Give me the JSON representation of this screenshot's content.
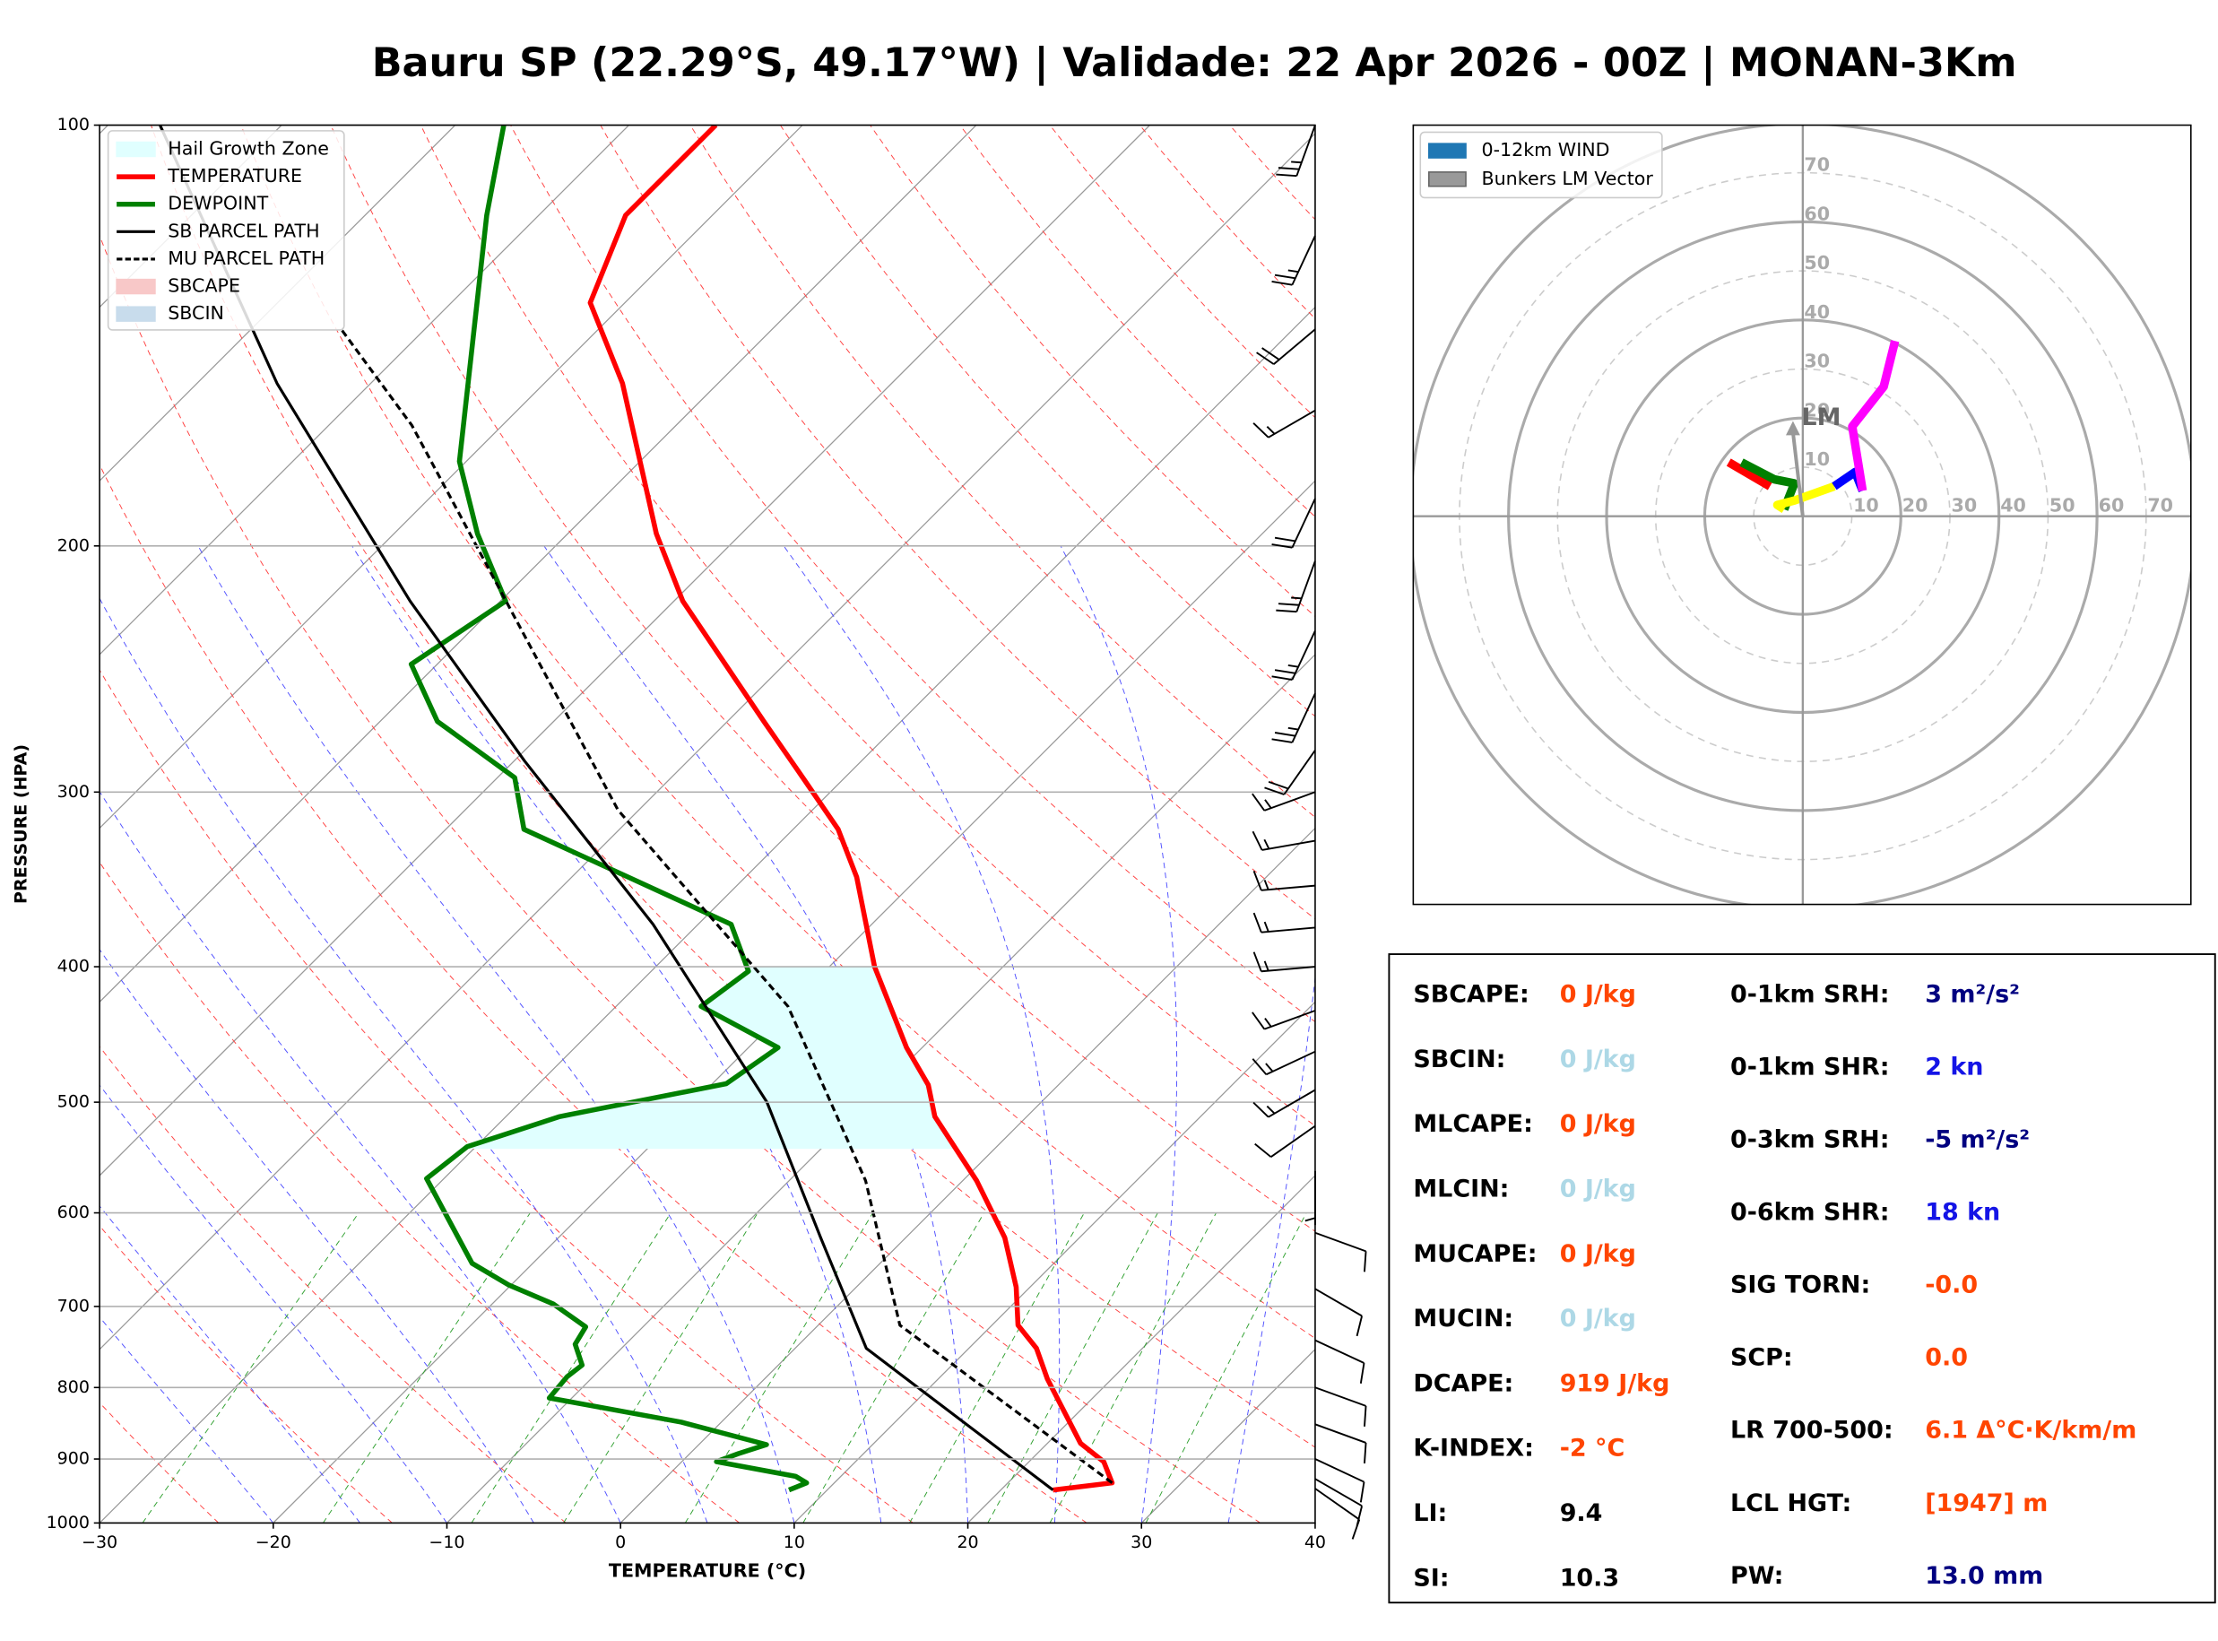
{
  "chart_data": [
    {
      "type": "skewt",
      "title": "Bauru SP (22.29°S, 49.17°W) | Validade: 22 Apr 2026 - 00Z | MONAN-3Km",
      "xlabel": "TEMPERATURE (°C)",
      "ylabel": "PRESSURE (HPA)",
      "xlim": [
        -30,
        40
      ],
      "xticks": [
        {
          "value": -30,
          "label": "−30"
        },
        {
          "value": -20,
          "label": "−20"
        },
        {
          "value": -10,
          "label": "−10"
        },
        0,
        10,
        20,
        30,
        40
      ],
      "ylim": [
        1000,
        100
      ],
      "ylog": true,
      "yticks": [
        100,
        200,
        300,
        400,
        500,
        600,
        700,
        800,
        900,
        1000
      ],
      "grid": true,
      "legend": "upper left",
      "hail_growth_zone": {
        "name": "Hail Growth Zone",
        "color": "#e0ffff",
        "pressure": [
          540,
          400
        ]
      },
      "series": [
        {
          "name": "TEMPERATURE",
          "color": "#ff0000",
          "dashed": false,
          "pressure": [
            947,
            936,
            904,
            877,
            789,
            750,
            722,
            678,
            625,
            569,
            512,
            486,
            457,
            400,
            345,
            319,
            294,
            267,
            219,
            196,
            153,
            134,
            116,
            100
          ],
          "values": [
            23.0,
            26.0,
            24.3,
            21.9,
            16.3,
            13.9,
            11.5,
            9.2,
            5.7,
            0.8,
            -5.3,
            -7.5,
            -10.9,
            -17.4,
            -23.6,
            -27.4,
            -32.2,
            -37.9,
            -49.5,
            -54.9,
            -65.5,
            -72.0,
            -75.0,
            -75.0
          ]
        },
        {
          "name": "DEWPOINT",
          "color": "#008000",
          "dashed": false,
          "pressure": [
            947,
            936,
            926,
            904,
            892,
            879,
            847,
            814,
            786,
            771,
            745,
            724,
            697,
            676,
            652,
            567,
            538,
            512,
            485,
            457,
            427,
            403,
            373,
            319,
            293,
            267,
            243,
            219,
            196,
            174,
            116,
            100
          ],
          "values": [
            7.8,
            8.4,
            7.4,
            2.0,
            2.8,
            3.9,
            -2.3,
            -11.3,
            -11.5,
            -11.3,
            -12.9,
            -13.3,
            -16.5,
            -20.1,
            -23.5,
            -31.0,
            -30.5,
            -26.9,
            -19.2,
            -18.3,
            -25.1,
            -24.4,
            -28.1,
            -45.5,
            -49.0,
            -56.7,
            -61.5,
            -59.7,
            -65.2,
            -70.4,
            -83.0,
            -87.2
          ]
        },
        {
          "name": "SB PARCEL PATH",
          "color": "#000000",
          "dashed": false,
          "pressure": [
            947,
            750,
            625,
            500,
            373,
            285,
            219,
            153,
            100
          ],
          "values": [
            23.0,
            4.1,
            -4.9,
            -15.8,
            -32.6,
            -49.4,
            -65.2,
            -85.4,
            -107.0
          ]
        },
        {
          "name": "MU PARCEL PATH",
          "color": "#000000",
          "dashed": true,
          "pressure": [
            936,
            722,
            569,
            427,
            309,
            164,
            140
          ],
          "values": [
            26.0,
            4.7,
            -5.6,
            -20.1,
            -41.2,
            -75.2,
            -84.8
          ]
        }
      ],
      "shading": [
        {
          "name": "SBCAPE",
          "color": "#f8c8c8"
        },
        {
          "name": "SBCIN",
          "color": "#c8dcec"
        }
      ],
      "wind": {
        "pressure": [
          100,
          120,
          140,
          160,
          185,
          205,
          230,
          255,
          280,
          300,
          325,
          350,
          375,
          400,
          430,
          460,
          490,
          520,
          560,
          620,
          680,
          740,
          800,
          850,
          900,
          930,
          945
        ],
        "direction": [
          200,
          205,
          230,
          240,
          205,
          200,
          205,
          205,
          215,
          250,
          260,
          265,
          265,
          265,
          250,
          245,
          240,
          235,
          180,
          110,
          120,
          115,
          110,
          110,
          115,
          120,
          125
        ],
        "speed": [
          25,
          25,
          20,
          15,
          20,
          25,
          25,
          25,
          20,
          15,
          15,
          15,
          15,
          15,
          15,
          15,
          15,
          10,
          5,
          10,
          10,
          10,
          10,
          10,
          10,
          10,
          10
        ]
      }
    },
    {
      "type": "hodograph",
      "rlim": 80,
      "rticks": [
        10,
        20,
        30,
        40,
        50,
        60,
        70
      ],
      "legend": [
        {
          "name": "0-12km WIND",
          "color": "#1f77b4"
        },
        {
          "name": "Bunkers LM Vector",
          "color": "#999999"
        }
      ],
      "bunkers": {
        "label": "LM",
        "u": -2.0,
        "v": 19.4
      },
      "series": [
        {
          "color": "#ff0000",
          "u": [
            -15.1,
            -6.7
          ],
          "v": [
            11.0,
            6.1
          ]
        },
        {
          "color": "#008000",
          "u": [
            -12.5,
            -5.8,
            -1.7,
            -3.8
          ],
          "v": [
            11.0,
            7.5,
            6.7,
            1.4
          ]
        },
        {
          "color": "#ffff00",
          "u": [
            -3.8,
            -5.2,
            -1.7,
            6.4
          ],
          "v": [
            1.4,
            2.3,
            3.2,
            6.1
          ]
        },
        {
          "color": "#0000ff",
          "u": [
            6.4,
            10.7,
            12.2
          ],
          "v": [
            6.1,
            9.0,
            5.2
          ]
        },
        {
          "color": "#ff00ff",
          "u": [
            12.2,
            10.1,
            16.5,
            18.8
          ],
          "v": [
            5.2,
            18.3,
            26.4,
            35.7
          ]
        }
      ]
    }
  ],
  "indices": {
    "left": [
      {
        "label": "SBCAPE:",
        "value": "0 J/kg",
        "color": "#ff4500"
      },
      {
        "label": "SBCIN:",
        "value": "0 J/kg",
        "color": "#add8e6"
      },
      {
        "label": "MLCAPE:",
        "value": "0 J/kg",
        "color": "#ff4500"
      },
      {
        "label": "MLCIN:",
        "value": "0 J/kg",
        "color": "#add8e6"
      },
      {
        "label": "MUCAPE:",
        "value": "0 J/kg",
        "color": "#ff4500"
      },
      {
        "label": "MUCIN:",
        "value": "0 J/kg",
        "color": "#add8e6"
      },
      {
        "label": "DCAPE:",
        "value": "919 J/kg",
        "color": "#ff4500"
      },
      {
        "label": "K-INDEX:",
        "value": "-2 °C",
        "color": "#ff4500"
      },
      {
        "label": "LI:",
        "value": "9.4",
        "color": "#000000"
      },
      {
        "label": "SI:",
        "value": "10.3",
        "color": "#000000"
      }
    ],
    "right": [
      {
        "label": "0-1km SRH:",
        "value": "3 m²/s²",
        "color": "#000080"
      },
      {
        "label": "0-1km SHR:",
        "value": "2 kn",
        "color": "#1414e6"
      },
      {
        "label": "0-3km SRH:",
        "value": "-5 m²/s²",
        "color": "#000080"
      },
      {
        "label": "0-6km SHR:",
        "value": "18 kn",
        "color": "#1414e6"
      },
      {
        "label": "SIG TORN:",
        "value": "-0.0",
        "color": "#ff4500"
      },
      {
        "label": "SCP:",
        "value": "0.0",
        "color": "#ff4500"
      },
      {
        "label": "LR 700-500:",
        "value": "6.1 Δ°C·K/km/m",
        "color": "#ff4500"
      },
      {
        "label": "LCL HGT:",
        "value": "[1947] m",
        "color": "#ff4500"
      },
      {
        "label": "PW:",
        "value": "13.0 mm",
        "color": "#000080"
      }
    ]
  }
}
